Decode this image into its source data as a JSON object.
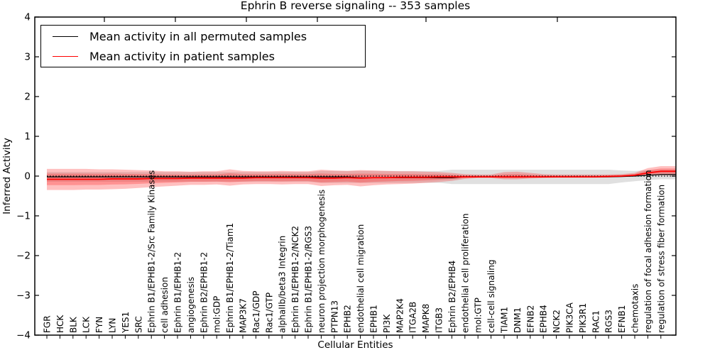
{
  "chart_data": {
    "type": "line",
    "title": "Ephrin B reverse signaling -- 353 samples",
    "xlabel": "Cellular Entities",
    "ylabel": "Inferred Activity",
    "ylim": [
      -4,
      4
    ],
    "yticks": [
      4,
      3,
      2,
      1,
      0,
      -1,
      -2,
      -3,
      -4
    ],
    "grid": false,
    "legend_position": "upper left",
    "zero_line": true,
    "colors": {
      "permuted_line": "#000000",
      "patient_line": "#ff0000",
      "patient_band": "rgba(255,30,30,0.28)",
      "permuted_band": "rgba(0,0,0,0.12)"
    },
    "categories": [
      "FGR",
      "HCK",
      "BLK",
      "LCK",
      "FYN",
      "LYN",
      "YES1",
      "SRC",
      "Ephrin B1/EPHB1-2/Src Family Kinases",
      "cell adhesion",
      "Ephrin B1/EPHB1-2",
      "angiogenesis",
      "Ephrin B2/EPHB1-2",
      "mol:GDP",
      "Ephrin B1/EPHB1-2/Tiam1",
      "MAP3K7",
      "Rac1/GDP",
      "Rac1/GTP",
      "alphaIIb/beta3 Integrin",
      "Ephrin B1/EPHB1-2/NCK2",
      "Ephrin B1/EPHB1-2/RGS3",
      "neuron projection morphogenesis",
      "PTPN13",
      "EPHB2",
      "endothelial cell migration",
      "EPHB1",
      "PI3K",
      "MAP2K4",
      "ITGA2B",
      "MAPK8",
      "ITGB3",
      "Ephrin B2/EPHB4",
      "endothelial cell proliferation",
      "mol:GTP",
      "cell-cell signaling",
      "TIAM1",
      "DNM1",
      "EFNB2",
      "EPHB4",
      "NCK2",
      "PIK3CA",
      "PIK3R1",
      "RAC1",
      "RGS3",
      "EFNB1",
      "chemotaxis",
      "regulation of focal adhesion formation",
      "regulation of stress fiber formation"
    ],
    "series": [
      {
        "name": "Mean activity in all permuted samples",
        "color": "#000000",
        "values": [
          -0.02,
          -0.02,
          -0.02,
          -0.02,
          -0.02,
          -0.02,
          -0.02,
          -0.02,
          -0.02,
          -0.02,
          -0.02,
          -0.02,
          -0.02,
          -0.02,
          -0.02,
          -0.02,
          -0.02,
          -0.02,
          -0.02,
          -0.02,
          -0.02,
          -0.02,
          -0.02,
          -0.02,
          -0.04,
          -0.04,
          -0.04,
          -0.04,
          -0.04,
          -0.04,
          -0.04,
          -0.04,
          -0.02,
          -0.02,
          -0.02,
          -0.02,
          -0.02,
          -0.02,
          -0.02,
          -0.02,
          -0.02,
          -0.02,
          -0.02,
          -0.02,
          -0.01,
          0.0,
          0.02,
          0.04
        ]
      },
      {
        "name": "Mean activity in patient samples",
        "color": "#ff0000",
        "values": [
          -0.08,
          -0.08,
          -0.08,
          -0.08,
          -0.08,
          -0.07,
          -0.07,
          -0.07,
          -0.06,
          -0.06,
          -0.06,
          -0.05,
          -0.05,
          -0.05,
          -0.05,
          -0.05,
          -0.04,
          -0.04,
          -0.04,
          -0.04,
          -0.04,
          -0.05,
          -0.05,
          -0.04,
          -0.05,
          -0.04,
          -0.04,
          -0.03,
          -0.03,
          -0.03,
          -0.02,
          -0.02,
          -0.02,
          -0.02,
          -0.02,
          -0.02,
          -0.02,
          -0.02,
          -0.02,
          -0.02,
          -0.02,
          -0.02,
          -0.02,
          -0.01,
          0.0,
          0.02,
          0.08,
          0.12
        ]
      }
    ],
    "bands": [
      {
        "name": "permuted-sample-range",
        "upper": [
          0.1,
          0.1,
          0.1,
          0.1,
          0.1,
          0.1,
          0.1,
          0.1,
          0.1,
          0.1,
          0.1,
          0.1,
          0.1,
          0.1,
          0.1,
          0.1,
          0.1,
          0.1,
          0.1,
          0.1,
          0.1,
          0.13,
          0.13,
          0.13,
          0.13,
          0.13,
          0.13,
          0.13,
          0.13,
          0.13,
          0.13,
          0.16,
          0.16,
          0.16,
          0.16,
          0.16,
          0.16,
          0.16,
          0.16,
          0.16,
          0.16,
          0.16,
          0.16,
          0.16,
          0.14,
          0.13,
          0.15,
          0.16
        ],
        "lower": [
          -0.14,
          -0.14,
          -0.14,
          -0.14,
          -0.14,
          -0.14,
          -0.14,
          -0.14,
          -0.14,
          -0.14,
          -0.14,
          -0.14,
          -0.14,
          -0.14,
          -0.14,
          -0.14,
          -0.14,
          -0.14,
          -0.14,
          -0.14,
          -0.14,
          -0.17,
          -0.17,
          -0.17,
          -0.17,
          -0.17,
          -0.17,
          -0.17,
          -0.17,
          -0.17,
          -0.17,
          -0.2,
          -0.2,
          -0.2,
          -0.2,
          -0.2,
          -0.2,
          -0.2,
          -0.2,
          -0.2,
          -0.2,
          -0.2,
          -0.2,
          -0.2,
          -0.16,
          -0.13,
          -0.1,
          -0.08
        ]
      },
      {
        "name": "patient-sample-range",
        "upper": [
          0.18,
          0.18,
          0.18,
          0.18,
          0.17,
          0.17,
          0.16,
          0.15,
          0.14,
          0.12,
          0.12,
          0.11,
          0.12,
          0.12,
          0.17,
          0.13,
          0.12,
          0.12,
          0.13,
          0.12,
          0.12,
          0.16,
          0.14,
          0.13,
          0.15,
          0.14,
          0.13,
          0.12,
          0.12,
          0.11,
          0.1,
          0.08,
          0.05,
          0.04,
          0.04,
          0.1,
          0.11,
          0.08,
          0.05,
          0.04,
          0.04,
          0.04,
          0.04,
          0.04,
          0.05,
          0.08,
          0.2,
          0.25
        ],
        "lower": [
          -0.35,
          -0.35,
          -0.35,
          -0.34,
          -0.34,
          -0.33,
          -0.32,
          -0.3,
          -0.28,
          -0.26,
          -0.24,
          -0.22,
          -0.22,
          -0.21,
          -0.24,
          -0.21,
          -0.2,
          -0.2,
          -0.21,
          -0.2,
          -0.2,
          -0.25,
          -0.23,
          -0.22,
          -0.26,
          -0.23,
          -0.21,
          -0.2,
          -0.19,
          -0.17,
          -0.15,
          -0.12,
          -0.07,
          -0.05,
          -0.05,
          -0.08,
          -0.08,
          -0.06,
          -0.05,
          -0.04,
          -0.04,
          -0.04,
          -0.04,
          -0.03,
          -0.02,
          0.0,
          0.02,
          0.02
        ]
      }
    ],
    "top_axis_ticks_x": [
      147,
      247,
      347,
      447,
      600,
      785
    ]
  },
  "legend": {
    "entries": [
      {
        "label": "Mean activity in all permuted samples"
      },
      {
        "label": "Mean activity in patient samples"
      }
    ]
  }
}
